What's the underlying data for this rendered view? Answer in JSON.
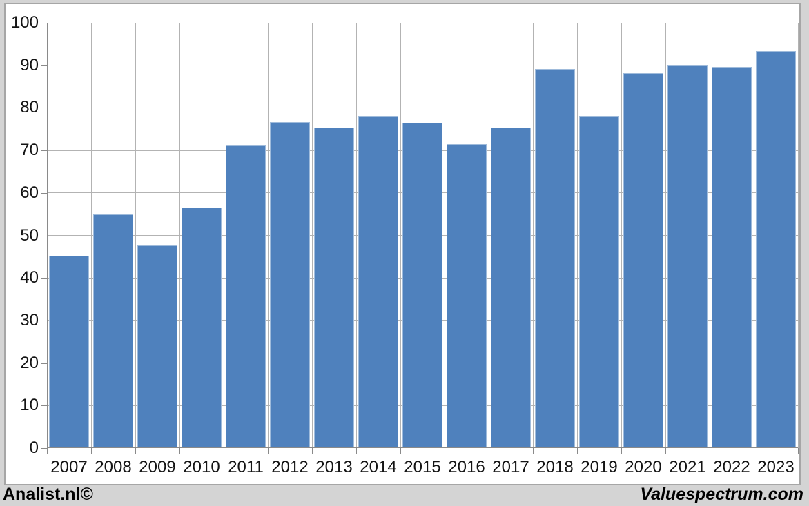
{
  "chart_data": {
    "type": "bar",
    "categories": [
      "2007",
      "2008",
      "2009",
      "2010",
      "2011",
      "2012",
      "2013",
      "2014",
      "2015",
      "2016",
      "2017",
      "2018",
      "2019",
      "2020",
      "2021",
      "2022",
      "2023"
    ],
    "values": [
      45.3,
      54.9,
      47.7,
      56.6,
      71.1,
      76.7,
      75.3,
      78.1,
      76.5,
      71.5,
      75.3,
      89.1,
      78.2,
      88.1,
      90.0,
      89.7,
      93.3
    ],
    "title": "",
    "xlabel": "",
    "ylabel": "",
    "ylim": [
      0,
      100
    ],
    "yticks": [
      0,
      10,
      20,
      30,
      40,
      50,
      60,
      70,
      80,
      90,
      100
    ],
    "grid": true,
    "legend": false,
    "colors": {
      "bar": "#4f81bd",
      "bar_edge": "#9fbbdb",
      "gridline": "#b3b3b3",
      "axis": "#8a8a8a",
      "panel_background": "#ffffff",
      "page_background": "#d4d4d4",
      "panel_border": "#a6a6a6",
      "text": "#141414"
    }
  },
  "footer": {
    "left": "Analist.nl©",
    "right": "Valuespectrum.com"
  }
}
